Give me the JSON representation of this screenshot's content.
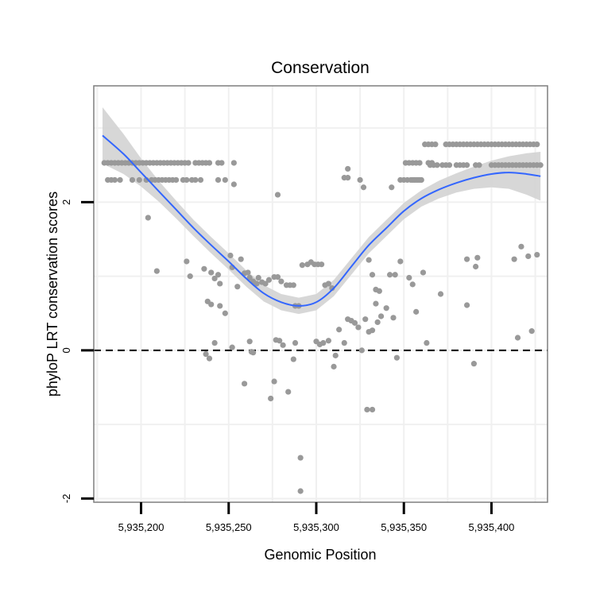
{
  "chart_data": {
    "type": "scatter",
    "title": "Conservation",
    "xlabel": "Genomic Position",
    "ylabel": "phyloP LRT conservation scores",
    "xlim": [
      5935173,
      5935432
    ],
    "ylim": [
      -2.05,
      3.57
    ],
    "x_ticks": [
      {
        "value": 5935200,
        "label": "5,935,200"
      },
      {
        "value": 5935250,
        "label": "5,935,250"
      },
      {
        "value": 5935300,
        "label": "5,935,300"
      },
      {
        "value": 5935350,
        "label": "5,935,350"
      },
      {
        "value": 5935400,
        "label": "5,935,400"
      }
    ],
    "y_ticks": [
      {
        "value": -2,
        "label": "-2"
      },
      {
        "value": 0,
        "label": "0"
      },
      {
        "value": 2,
        "label": "2"
      }
    ],
    "grid": true,
    "reference_line": {
      "y": 0,
      "style": "dashed",
      "color": "#000000"
    },
    "colors": {
      "points": "#999999",
      "smooth_line": "#3366ff",
      "confidence_band": "#d3d3d3",
      "grid": "#f0f0f0",
      "frame": "#7f7f7f"
    },
    "smooth": {
      "x": [
        5935178,
        5935190,
        5935200,
        5935210,
        5935220,
        5935230,
        5935240,
        5935250,
        5935260,
        5935270,
        5935280,
        5935290,
        5935300,
        5935310,
        5935320,
        5935330,
        5935340,
        5935350,
        5935360,
        5935370,
        5935380,
        5935390,
        5935400,
        5935410,
        5935420,
        5935428
      ],
      "y": [
        2.9,
        2.65,
        2.4,
        2.15,
        1.9,
        1.65,
        1.42,
        1.2,
        0.97,
        0.77,
        0.65,
        0.6,
        0.65,
        0.84,
        1.13,
        1.42,
        1.65,
        1.88,
        2.05,
        2.17,
        2.26,
        2.33,
        2.38,
        2.4,
        2.38,
        2.35
      ],
      "ci_half_width": [
        0.38,
        0.27,
        0.19,
        0.14,
        0.12,
        0.11,
        0.11,
        0.11,
        0.11,
        0.11,
        0.11,
        0.11,
        0.11,
        0.11,
        0.11,
        0.11,
        0.11,
        0.11,
        0.11,
        0.12,
        0.13,
        0.15,
        0.18,
        0.22,
        0.28,
        0.33
      ]
    },
    "points": [
      [
        5935179,
        2.53
      ],
      [
        5935181,
        2.53
      ],
      [
        5935183,
        2.53
      ],
      [
        5935185,
        2.53
      ],
      [
        5935187,
        2.53
      ],
      [
        5935189,
        2.53
      ],
      [
        5935191,
        2.53
      ],
      [
        5935193,
        2.53
      ],
      [
        5935195,
        2.53
      ],
      [
        5935197,
        2.53
      ],
      [
        5935199,
        2.53
      ],
      [
        5935201,
        2.53
      ],
      [
        5935203,
        2.53
      ],
      [
        5935205,
        2.53
      ],
      [
        5935207,
        2.53
      ],
      [
        5935209,
        2.53
      ],
      [
        5935211,
        2.53
      ],
      [
        5935213,
        2.53
      ],
      [
        5935215,
        2.53
      ],
      [
        5935217,
        2.53
      ],
      [
        5935219,
        2.53
      ],
      [
        5935221,
        2.53
      ],
      [
        5935223,
        2.53
      ],
      [
        5935225,
        2.53
      ],
      [
        5935227,
        2.53
      ],
      [
        5935231,
        2.53
      ],
      [
        5935233,
        2.53
      ],
      [
        5935235,
        2.53
      ],
      [
        5935237,
        2.53
      ],
      [
        5935239,
        2.53
      ],
      [
        5935244,
        2.53
      ],
      [
        5935246,
        2.53
      ],
      [
        5935253,
        2.53
      ],
      [
        5935181,
        2.3
      ],
      [
        5935183,
        2.3
      ],
      [
        5935185,
        2.3
      ],
      [
        5935188,
        2.3
      ],
      [
        5935195,
        2.3
      ],
      [
        5935199,
        2.3
      ],
      [
        5935203,
        2.3
      ],
      [
        5935206,
        2.3
      ],
      [
        5935208,
        2.3
      ],
      [
        5935210,
        2.3
      ],
      [
        5935212,
        2.3
      ],
      [
        5935214,
        2.3
      ],
      [
        5935216,
        2.3
      ],
      [
        5935218,
        2.3
      ],
      [
        5935220,
        2.3
      ],
      [
        5935224,
        2.3
      ],
      [
        5935226,
        2.3
      ],
      [
        5935229,
        2.3
      ],
      [
        5935231,
        2.3
      ],
      [
        5935234,
        2.3
      ],
      [
        5935244,
        2.3
      ],
      [
        5935248,
        2.3
      ],
      [
        5935253,
        2.24
      ],
      [
        5935204,
        1.79
      ],
      [
        5935209,
        1.07
      ],
      [
        5935226,
        1.2
      ],
      [
        5935228,
        1.0
      ],
      [
        5935236,
        1.1
      ],
      [
        5935240,
        1.05
      ],
      [
        5935242,
        0.97
      ],
      [
        5935244,
        1.02
      ],
      [
        5935238,
        0.66
      ],
      [
        5935240,
        0.62
      ],
      [
        5935245,
        0.6
      ],
      [
        5935248,
        0.5
      ],
      [
        5935251,
        1.28
      ],
      [
        5935252,
        1.12
      ],
      [
        5935255,
        0.86
      ],
      [
        5935257,
        1.23
      ],
      [
        5935259,
        1.04
      ],
      [
        5935261,
        1.05
      ],
      [
        5935262,
        0.98
      ],
      [
        5935264,
        0.93
      ],
      [
        5935266,
        0.9
      ],
      [
        5935267,
        0.98
      ],
      [
        5935269,
        0.92
      ],
      [
        5935271,
        0.9
      ],
      [
        5935273,
        0.95
      ],
      [
        5935276,
        0.99
      ],
      [
        5935278,
        0.99
      ],
      [
        5935280,
        0.93
      ],
      [
        5935283,
        0.88
      ],
      [
        5935285,
        0.88
      ],
      [
        5935287,
        0.88
      ],
      [
        5935288,
        0.6
      ],
      [
        5935290,
        0.6
      ],
      [
        5935292,
        1.15
      ],
      [
        5935295,
        1.16
      ],
      [
        5935297,
        1.19
      ],
      [
        5935299,
        1.16
      ],
      [
        5935301,
        1.16
      ],
      [
        5935303,
        1.16
      ],
      [
        5935305,
        0.88
      ],
      [
        5935307,
        0.9
      ],
      [
        5935309,
        0.84
      ],
      [
        5935278,
        2.1
      ],
      [
        5935237,
        -0.05
      ],
      [
        5935239,
        -0.11
      ],
      [
        5935242,
        0.1
      ],
      [
        5935245,
        0.9
      ],
      [
        5935252,
        0.04
      ],
      [
        5935259,
        -0.45
      ],
      [
        5935262,
        0.12
      ],
      [
        5935263,
        -0.02
      ],
      [
        5935264,
        -0.03
      ],
      [
        5935274,
        -0.65
      ],
      [
        5935276,
        -0.42
      ],
      [
        5935277,
        0.14
      ],
      [
        5935279,
        0.13
      ],
      [
        5935281,
        0.07
      ],
      [
        5935284,
        -0.56
      ],
      [
        5935287,
        -0.12
      ],
      [
        5935288,
        0.1
      ],
      [
        5935291,
        -1.45
      ],
      [
        5935291,
        -1.9
      ],
      [
        5935300,
        0.12
      ],
      [
        5935302,
        0.08
      ],
      [
        5935304,
        0.1
      ],
      [
        5935307,
        0.13
      ],
      [
        5935310,
        -0.22
      ],
      [
        5935311,
        -0.07
      ],
      [
        5935313,
        0.28
      ],
      [
        5935316,
        0.1
      ],
      [
        5935318,
        0.42
      ],
      [
        5935320,
        0.4
      ],
      [
        5935322,
        0.37
      ],
      [
        5935324,
        0.31
      ],
      [
        5935326,
        0.0
      ],
      [
        5935328,
        0.42
      ],
      [
        5935330,
        0.25
      ],
      [
        5935329,
        -0.8
      ],
      [
        5935332,
        -0.8
      ],
      [
        5935332,
        0.27
      ],
      [
        5935334,
        0.63
      ],
      [
        5935335,
        0.38
      ],
      [
        5935337,
        0.46
      ],
      [
        5935340,
        0.57
      ],
      [
        5935342,
        1.02
      ],
      [
        5935344,
        0.44
      ],
      [
        5935345,
        1.02
      ],
      [
        5935316,
        2.33
      ],
      [
        5935318,
        2.33
      ],
      [
        5935318,
        2.45
      ],
      [
        5935325,
        2.3
      ],
      [
        5935327,
        2.2
      ],
      [
        5935330,
        1.22
      ],
      [
        5935332,
        1.02
      ],
      [
        5935334,
        0.82
      ],
      [
        5935336,
        0.8
      ],
      [
        5935343,
        2.2
      ],
      [
        5935348,
        1.2
      ],
      [
        5935351,
        2.53
      ],
      [
        5935353,
        2.53
      ],
      [
        5935355,
        2.53
      ],
      [
        5935357,
        2.53
      ],
      [
        5935359,
        2.53
      ],
      [
        5935348,
        2.3
      ],
      [
        5935350,
        2.3
      ],
      [
        5935352,
        2.3
      ],
      [
        5935354,
        2.3
      ],
      [
        5935356,
        2.3
      ],
      [
        5935358,
        2.3
      ],
      [
        5935360,
        2.3
      ],
      [
        5935355,
        2.3
      ],
      [
        5935357,
        2.3
      ],
      [
        5935359,
        2.3
      ],
      [
        5935346,
        -0.1
      ],
      [
        5935355,
        0.89
      ],
      [
        5935353,
        0.98
      ],
      [
        5935357,
        0.52
      ],
      [
        5935361,
        1.05
      ],
      [
        5935363,
        0.1
      ],
      [
        5935362,
        2.78
      ],
      [
        5935364,
        2.78
      ],
      [
        5935366,
        2.78
      ],
      [
        5935368,
        2.78
      ],
      [
        5935374,
        2.78
      ],
      [
        5935376,
        2.78
      ],
      [
        5935378,
        2.78
      ],
      [
        5935380,
        2.78
      ],
      [
        5935382,
        2.78
      ],
      [
        5935384,
        2.78
      ],
      [
        5935386,
        2.78
      ],
      [
        5935388,
        2.78
      ],
      [
        5935390,
        2.78
      ],
      [
        5935392,
        2.78
      ],
      [
        5935394,
        2.78
      ],
      [
        5935396,
        2.78
      ],
      [
        5935398,
        2.78
      ],
      [
        5935400,
        2.78
      ],
      [
        5935402,
        2.78
      ],
      [
        5935404,
        2.78
      ],
      [
        5935406,
        2.78
      ],
      [
        5935408,
        2.78
      ],
      [
        5935410,
        2.78
      ],
      [
        5935412,
        2.78
      ],
      [
        5935414,
        2.78
      ],
      [
        5935416,
        2.78
      ],
      [
        5935418,
        2.78
      ],
      [
        5935420,
        2.78
      ],
      [
        5935422,
        2.78
      ],
      [
        5935424,
        2.78
      ],
      [
        5935426,
        2.78
      ],
      [
        5935365,
        2.5
      ],
      [
        5935367,
        2.5
      ],
      [
        5935369,
        2.5
      ],
      [
        5935372,
        2.5
      ],
      [
        5935374,
        2.5
      ],
      [
        5935376,
        2.5
      ],
      [
        5935380,
        2.5
      ],
      [
        5935382,
        2.5
      ],
      [
        5935384,
        2.5
      ],
      [
        5935386,
        2.5
      ],
      [
        5935391,
        2.5
      ],
      [
        5935393,
        2.5
      ],
      [
        5935400,
        2.5
      ],
      [
        5935402,
        2.5
      ],
      [
        5935404,
        2.5
      ],
      [
        5935406,
        2.5
      ],
      [
        5935408,
        2.5
      ],
      [
        5935410,
        2.5
      ],
      [
        5935412,
        2.5
      ],
      [
        5935414,
        2.5
      ],
      [
        5935416,
        2.5
      ],
      [
        5935418,
        2.5
      ],
      [
        5935420,
        2.5
      ],
      [
        5935422,
        2.5
      ],
      [
        5935424,
        2.5
      ],
      [
        5935426,
        2.5
      ],
      [
        5935428,
        2.5
      ],
      [
        5935364,
        2.53
      ],
      [
        5935366,
        2.53
      ],
      [
        5935371,
        0.76
      ],
      [
        5935386,
        1.23
      ],
      [
        5935386,
        0.61
      ],
      [
        5935390,
        -0.18
      ],
      [
        5935391,
        1.13
      ],
      [
        5935392,
        1.25
      ],
      [
        5935413,
        1.23
      ],
      [
        5935415,
        0.17
      ],
      [
        5935417,
        1.4
      ],
      [
        5935421,
        1.27
      ],
      [
        5935423,
        0.26
      ],
      [
        5935426,
        1.29
      ]
    ]
  }
}
